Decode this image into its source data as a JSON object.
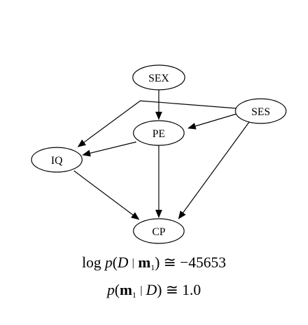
{
  "graph": {
    "nodes": {
      "sex": "SEX",
      "ses": "SES",
      "pe": "PE",
      "iq": "IQ",
      "cp": "CP"
    }
  },
  "formulas": {
    "line1": {
      "log": "log",
      "p": "p",
      "open": "(",
      "d": "D",
      "bar": "|",
      "m": "m",
      "sub": "1",
      "close": ")",
      "approx": "≅",
      "value": "−45653"
    },
    "line2": {
      "p": "p",
      "open": "(",
      "m": "m",
      "sub": "1",
      "bar": "|",
      "d": "D",
      "close": ")",
      "approx": "≅",
      "value": "1.0"
    }
  }
}
